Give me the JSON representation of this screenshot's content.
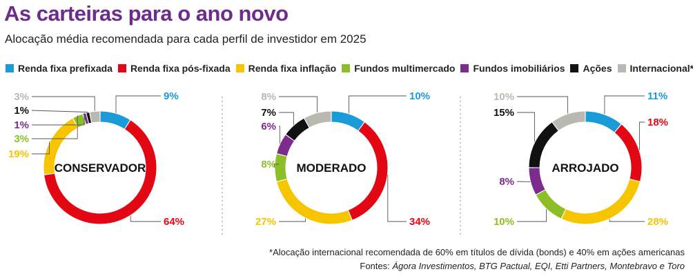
{
  "title": "As carteiras para o ano novo",
  "subtitle": "Alocação média recomendada para cada perfil de investidor em 2025",
  "colors": {
    "title": "#6d2c8c",
    "categories": [
      "#1a9ad6",
      "#e30613",
      "#f6c500",
      "#8cbf26",
      "#7b2c8c",
      "#111111",
      "#b9b9b1"
    ]
  },
  "legend": [
    {
      "label": "Renda fixa prefixada"
    },
    {
      "label": "Renda fixa pós-fixada"
    },
    {
      "label": "Renda fixa inflação"
    },
    {
      "label": "Fundos multimercado"
    },
    {
      "label": "Fundos imobiliários"
    },
    {
      "label": "Ações"
    },
    {
      "label": "Internacional*"
    }
  ],
  "chart_data": [
    {
      "type": "pie",
      "title": "CONSERVADOR",
      "categories": [
        "Renda fixa prefixada",
        "Renda fixa pós-fixada",
        "Renda fixa inflação",
        "Fundos multimercado",
        "Fundos imobiliários",
        "Ações",
        "Internacional*"
      ],
      "values": [
        9,
        64,
        19,
        3,
        1,
        1,
        3
      ],
      "labels": [
        "9%",
        "64%",
        "19%",
        "3%",
        "1%",
        "1%",
        "3%"
      ]
    },
    {
      "type": "pie",
      "title": "MODERADO",
      "categories": [
        "Renda fixa prefixada",
        "Renda fixa pós-fixada",
        "Renda fixa inflação",
        "Fundos multimercado",
        "Fundos imobiliários",
        "Ações",
        "Internacional*"
      ],
      "values": [
        10,
        34,
        27,
        8,
        6,
        7,
        8
      ],
      "labels": [
        "10%",
        "34%",
        "27%",
        "8%",
        "6%",
        "7%",
        "8%"
      ]
    },
    {
      "type": "pie",
      "title": "ARROJADO",
      "categories": [
        "Renda fixa prefixada",
        "Renda fixa pós-fixada",
        "Renda fixa inflação",
        "Fundos multimercado",
        "Fundos imobiliários",
        "Ações",
        "Internacional*"
      ],
      "values": [
        11,
        18,
        28,
        10,
        8,
        15,
        10
      ],
      "labels": [
        "11%",
        "18%",
        "28%",
        "10%",
        "8%",
        "15%",
        "10%"
      ]
    }
  ],
  "footnote": "*Alocação internacional recomendada de 60% em títulos de dívida (bonds) e 40% em ações americanas",
  "sources": {
    "prefix": "Fontes: ",
    "names": "Ágora Investimentos, BTG Pactual, EQI, Etti Partners, Montebravo e Toro"
  }
}
